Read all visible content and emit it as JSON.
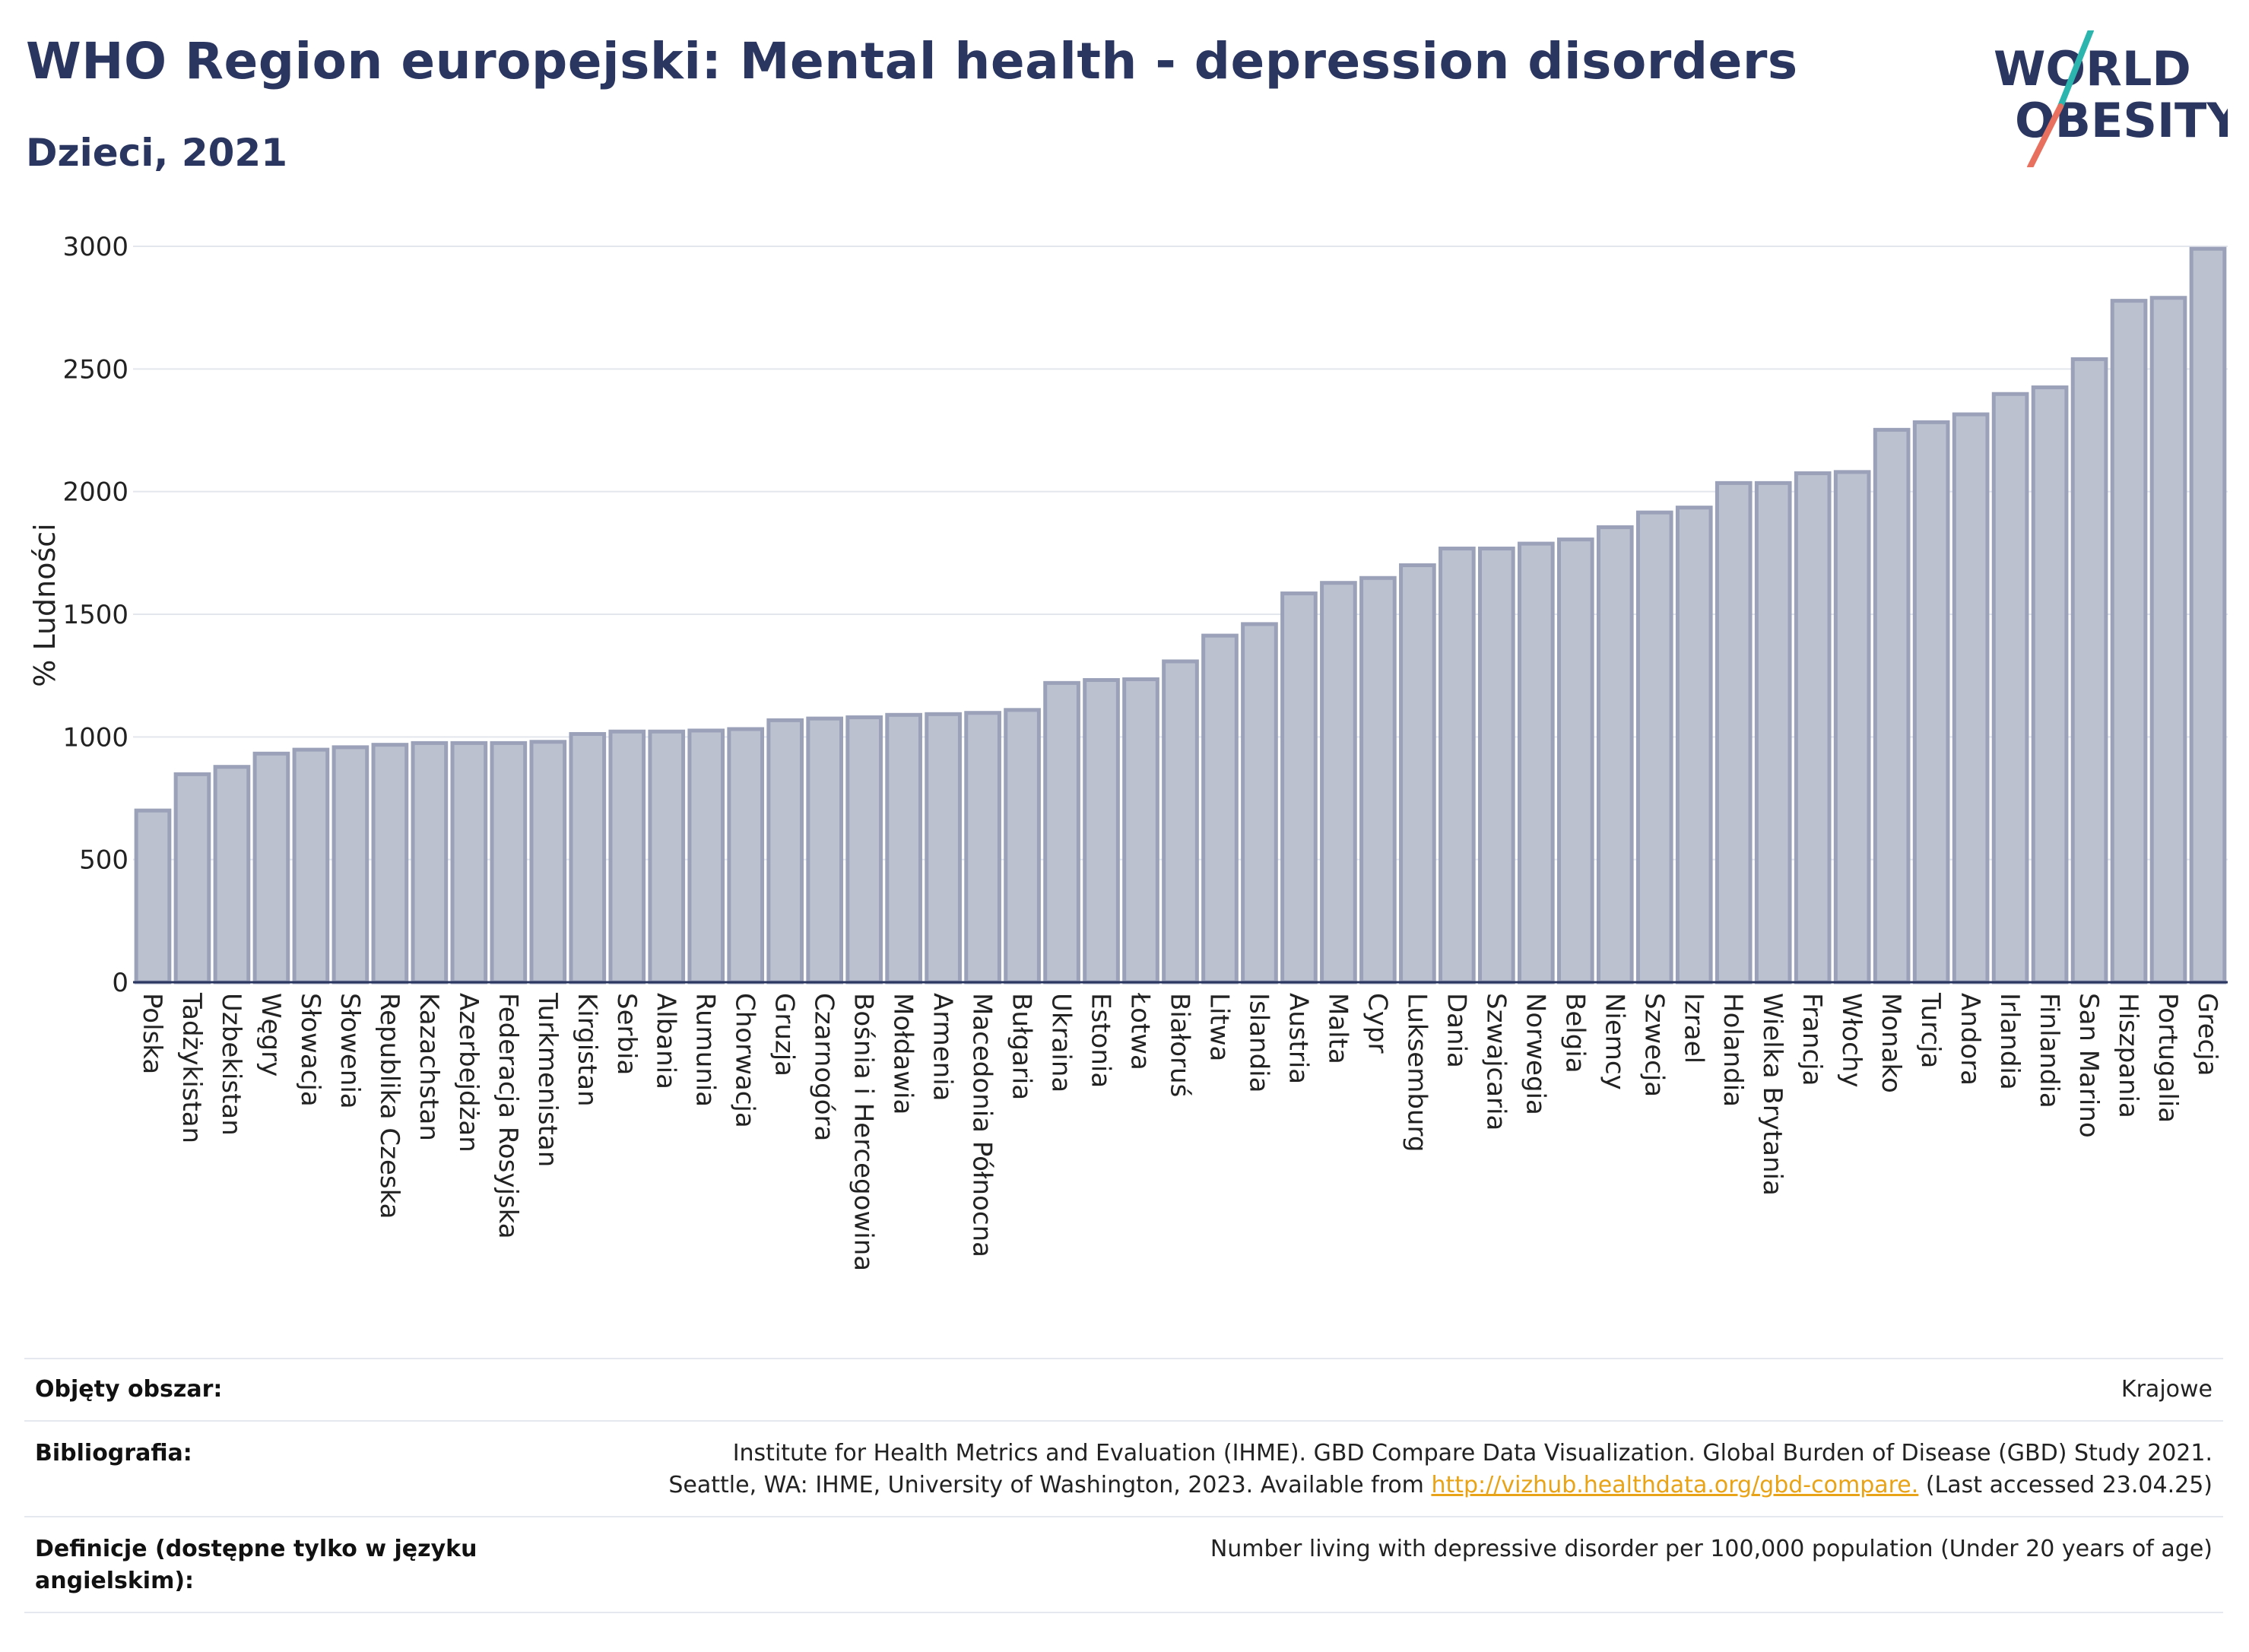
{
  "header": {
    "title": "WHO Region europejski: Mental health - depression disorders",
    "subtitle": "Dzieci, 2021"
  },
  "logo": {
    "line1": "WORLD",
    "line2": "OBESITY",
    "color": "#2a3560",
    "accent1": "#2bb5ae",
    "accent2": "#e8705f"
  },
  "chart_data": {
    "type": "bar",
    "ylabel": "% Ludności",
    "xlabel": "",
    "ylim": [
      0,
      3000
    ],
    "yticks": [
      0,
      500,
      1000,
      1500,
      2000,
      2500,
      3000
    ],
    "grid": true,
    "bar_fill": "#bcc1d0",
    "bar_stroke": "#9aa1b8",
    "categories": [
      "Polska",
      "Tadżykistan",
      "Uzbekistan",
      "Węgry",
      "Słowacja",
      "Słowenia",
      "Republika Czeska",
      "Kazachstan",
      "Azerbejdżan",
      "Federacja Rosyjska",
      "Turkmenistan",
      "Kirgistan",
      "Serbia",
      "Albania",
      "Rumunia",
      "Chorwacja",
      "Gruzja",
      "Czarnogóra",
      "Bośnia i Hercegowina",
      "Mołdawia",
      "Armenia",
      "Macedonia Północna",
      "Bułgaria",
      "Ukraina",
      "Estonia",
      "Łotwa",
      "Białoruś",
      "Litwa",
      "Islandia",
      "Austria",
      "Malta",
      "Cypr",
      "Luksemburg",
      "Dania",
      "Szwajcaria",
      "Norwegia",
      "Belgia",
      "Niemcy",
      "Szwecja",
      "Izrael",
      "Holandia",
      "Wielka Brytania",
      "Francja",
      "Włochy",
      "Monako",
      "Turcja",
      "Andora",
      "Irlandia",
      "Finlandia",
      "San Marino",
      "Hiszpania",
      "Portugalia",
      "Grecja"
    ],
    "values": [
      700,
      848,
      878,
      932,
      948,
      958,
      968,
      975,
      975,
      975,
      980,
      1012,
      1022,
      1022,
      1026,
      1032,
      1068,
      1075,
      1080,
      1090,
      1093,
      1098,
      1110,
      1220,
      1232,
      1235,
      1308,
      1413,
      1460,
      1585,
      1628,
      1648,
      1700,
      1768,
      1768,
      1788,
      1805,
      1855,
      1915,
      1935,
      2035,
      2035,
      2075,
      2080,
      2252,
      2283,
      2315,
      2398,
      2425,
      2540,
      2778,
      2790,
      2990
    ]
  },
  "info": {
    "coverage_label": "Objęty obszar:",
    "coverage_value": "Krajowe",
    "bibliography_label": "Bibliografia:",
    "bibliography_line1": "Institute for Health Metrics and Evaluation (IHME). GBD Compare Data Visualization. Global Burden of Disease (GBD) Study 2021.",
    "bibliography_line2_prefix": "Seattle, WA: IHME, University of Washington, 2023. Available from ",
    "bibliography_link": "http://vizhub.healthdata.org/gbd-compare.",
    "bibliography_line2_suffix": " (Last accessed 23.04.25)",
    "definitions_label_line1": "Definicje (dostępne tylko w języku",
    "definitions_label_line2": "angielskim):",
    "definitions_value": "Number living with depressive disorder per 100,000 population (Under 20 years of age)"
  }
}
